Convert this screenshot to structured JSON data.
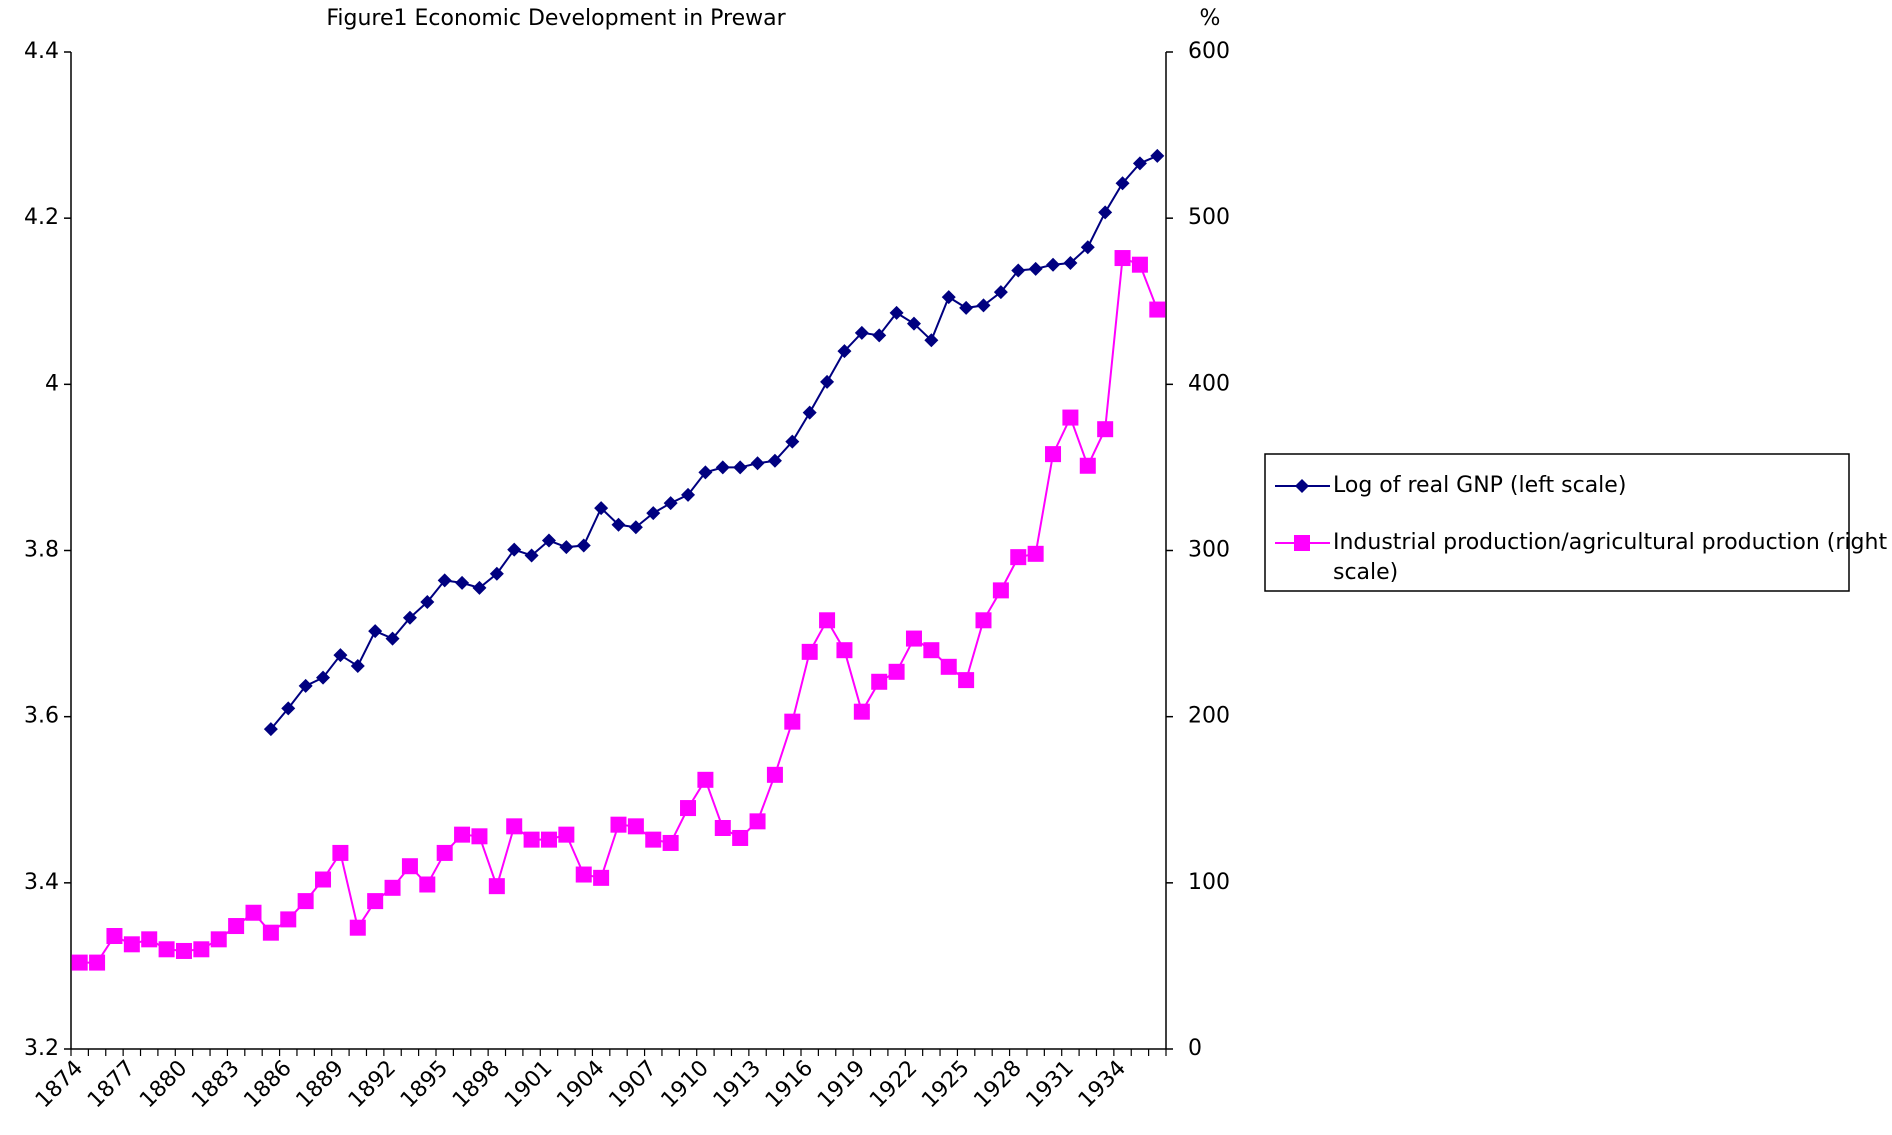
{
  "chart_data": {
    "type": "line",
    "title": "Figure1 Economic Development in Prewar",
    "y2label": "%",
    "x": [
      1874,
      1875,
      1876,
      1877,
      1878,
      1879,
      1880,
      1881,
      1882,
      1883,
      1884,
      1885,
      1886,
      1887,
      1888,
      1889,
      1890,
      1891,
      1892,
      1893,
      1894,
      1895,
      1896,
      1897,
      1898,
      1899,
      1900,
      1901,
      1902,
      1903,
      1904,
      1905,
      1906,
      1907,
      1908,
      1909,
      1910,
      1911,
      1912,
      1913,
      1914,
      1915,
      1916,
      1917,
      1918,
      1919,
      1920,
      1921,
      1922,
      1923,
      1924,
      1925,
      1926,
      1927,
      1928,
      1929,
      1930,
      1931,
      1932,
      1933,
      1934,
      1935,
      1936
    ],
    "xlim": [
      1873.5,
      1936.5
    ],
    "xticks": [
      1874,
      1877,
      1880,
      1883,
      1886,
      1889,
      1892,
      1895,
      1898,
      1901,
      1904,
      1907,
      1910,
      1913,
      1916,
      1919,
      1922,
      1925,
      1928,
      1931,
      1934
    ],
    "ylim": [
      3.2,
      4.4
    ],
    "yticks": [
      3.2,
      3.4,
      3.6,
      3.8,
      4,
      4.2,
      4.4
    ],
    "y2lim": [
      0,
      600
    ],
    "y2ticks": [
      0,
      100,
      200,
      300,
      400,
      500,
      600
    ],
    "legend": "right",
    "series": [
      {
        "name": "Log of real GNP (left scale)",
        "color": "#000080",
        "marker": "diamond",
        "values": [
          null,
          null,
          null,
          null,
          null,
          null,
          null,
          null,
          null,
          null,
          null,
          3.585,
          3.61,
          3.637,
          3.647,
          3.674,
          3.661,
          3.703,
          3.694,
          3.719,
          3.738,
          3.764,
          3.761,
          3.755,
          3.772,
          3.801,
          3.794,
          3.812,
          3.804,
          3.806,
          3.851,
          3.831,
          3.828,
          3.845,
          3.857,
          3.867,
          3.894,
          3.9,
          3.9,
          3.905,
          3.908,
          3.931,
          3.966,
          4.003,
          4.04,
          4.062,
          4.059,
          4.086,
          4.073,
          4.053,
          4.105,
          4.092,
          4.095,
          4.111,
          4.137,
          4.139,
          4.144,
          4.146,
          4.165,
          4.207,
          4.242,
          4.266,
          4.275
        ]
      },
      {
        "name": "Industrial production/agricultural production (right scale)",
        "color": "#ff00ff",
        "marker": "square",
        "axis": "y2",
        "values": [
          52,
          52,
          68,
          63,
          66,
          60,
          59,
          60,
          66,
          74,
          82,
          70,
          78,
          89,
          102,
          118,
          73,
          89,
          97,
          110,
          99,
          118,
          129,
          128,
          98,
          134,
          126,
          126,
          129,
          105,
          103,
          135,
          134,
          126,
          124,
          145,
          162,
          133,
          127,
          137,
          165,
          197,
          239,
          258,
          240,
          203,
          221,
          227,
          247,
          240,
          230,
          222,
          258,
          276,
          296,
          298,
          358,
          380,
          351,
          373,
          476,
          472,
          445
        ]
      }
    ]
  }
}
